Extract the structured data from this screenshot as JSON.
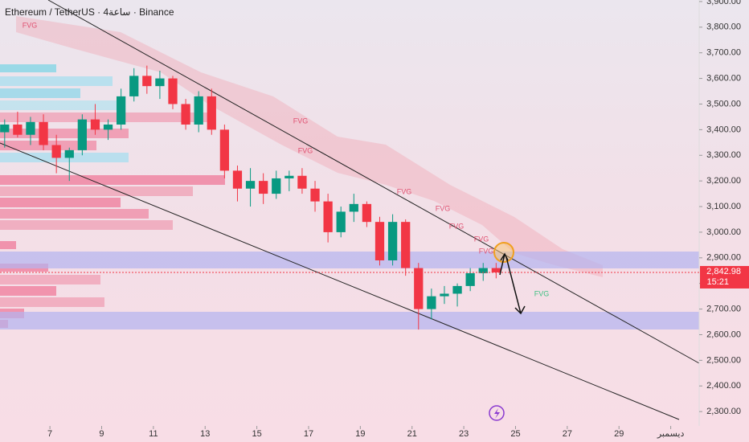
{
  "chart_data": {
    "type": "candlestick",
    "title": "Ethereum / TetherUS · 4ساعة · Binance",
    "x": [
      5.25,
      5.75,
      6.25,
      6.75,
      7.25,
      7.75,
      8.25,
      8.75,
      9.25,
      9.75,
      10.25,
      10.75,
      11.25,
      11.75,
      12.25,
      12.75,
      13.25,
      13.75,
      14.25,
      14.75,
      15.25,
      15.75,
      16.25,
      16.75,
      17.25,
      17.75,
      18.25,
      18.75,
      19.25,
      19.75,
      20.25,
      20.75,
      21.25,
      21.75,
      22.25,
      22.75,
      23.25,
      23.75,
      24.25
    ],
    "open": [
      3390,
      3420,
      3380,
      3430,
      3340,
      3290,
      3320,
      3440,
      3400,
      3420,
      3530,
      3610,
      3570,
      3600,
      3500,
      3420,
      3530,
      3400,
      3240,
      3170,
      3200,
      3150,
      3210,
      3220,
      3170,
      3120,
      3000,
      3080,
      3110,
      3040,
      2890,
      3040,
      2860,
      2700,
      2750,
      2760,
      2790,
      2840,
      2860
    ],
    "high": [
      3440,
      3470,
      3450,
      3460,
      3380,
      3330,
      3460,
      3500,
      3440,
      3560,
      3640,
      3650,
      3630,
      3610,
      3520,
      3550,
      3560,
      3420,
      3260,
      3250,
      3230,
      3240,
      3240,
      3250,
      3200,
      3150,
      3100,
      3150,
      3120,
      3060,
      3070,
      3050,
      2880,
      2780,
      2790,
      2800,
      2860,
      2880,
      2880
    ],
    "low": [
      3330,
      3370,
      3340,
      3320,
      3230,
      3200,
      3300,
      3380,
      3360,
      3400,
      3510,
      3540,
      3520,
      3480,
      3400,
      3390,
      3380,
      3210,
      3120,
      3100,
      3110,
      3130,
      3160,
      3150,
      3080,
      2960,
      2980,
      3040,
      3020,
      2870,
      2870,
      2830,
      2620,
      2660,
      2720,
      2710,
      2770,
      2810,
      2820
    ],
    "close": [
      3420,
      3380,
      3430,
      3340,
      3290,
      3320,
      3440,
      3400,
      3420,
      3530,
      3610,
      3570,
      3600,
      3500,
      3420,
      3530,
      3400,
      3240,
      3170,
      3200,
      3150,
      3210,
      3220,
      3170,
      3120,
      3000,
      3080,
      3110,
      3040,
      2890,
      3040,
      2860,
      2700,
      2750,
      2760,
      2790,
      2840,
      2860,
      2843
    ],
    "up_color": "#089981",
    "down_color": "#f23645",
    "xlim": [
      5.07,
      32.1
    ],
    "xticks": [
      {
        "value": 7,
        "label": "7"
      },
      {
        "value": 9,
        "label": "9"
      },
      {
        "value": 11,
        "label": "11"
      },
      {
        "value": 13,
        "label": "13"
      },
      {
        "value": 15,
        "label": "15"
      },
      {
        "value": 17,
        "label": "17"
      },
      {
        "value": 19,
        "label": "19"
      },
      {
        "value": 21,
        "label": "21"
      },
      {
        "value": 23,
        "label": "23"
      },
      {
        "value": 25,
        "label": "25"
      },
      {
        "value": 27,
        "label": "27"
      },
      {
        "value": 29,
        "label": "29"
      },
      {
        "value": 31,
        "label": "ديسمبر"
      }
    ],
    "ylim": [
      2244,
      3906
    ],
    "yticks": [
      {
        "value": 2300,
        "label": "2,300.00"
      },
      {
        "value": 2400,
        "label": "2,400.00"
      },
      {
        "value": 2500,
        "label": "2,500.00"
      },
      {
        "value": 2600,
        "label": "2,600.00"
      },
      {
        "value": 2700,
        "label": "2,700.00"
      },
      {
        "value": 2800,
        "label": "2,800.00"
      },
      {
        "value": 2900,
        "label": "2,900.00"
      },
      {
        "value": 3000,
        "label": "3,000.00"
      },
      {
        "value": 3100,
        "label": "3,100.00"
      },
      {
        "value": 3200,
        "label": "3,200.00"
      },
      {
        "value": 3300,
        "label": "3,300.00"
      },
      {
        "value": 3400,
        "label": "3,400.00"
      },
      {
        "value": 3500,
        "label": "3,500.00"
      },
      {
        "value": 3600,
        "label": "3,600.00"
      },
      {
        "value": 3700,
        "label": "3,700.00"
      },
      {
        "value": 3800,
        "label": "3,800.00"
      },
      {
        "value": 3900,
        "label": "3,900.00"
      }
    ],
    "last_price": {
      "value": 2842.98,
      "label": "2,842.98"
    },
    "countdown": "15:21",
    "annotations": [
      "FVG",
      "FVG",
      "FVG",
      "FVG",
      "FVG",
      "FVG",
      "FVG",
      "FVG",
      "FVG"
    ]
  }
}
